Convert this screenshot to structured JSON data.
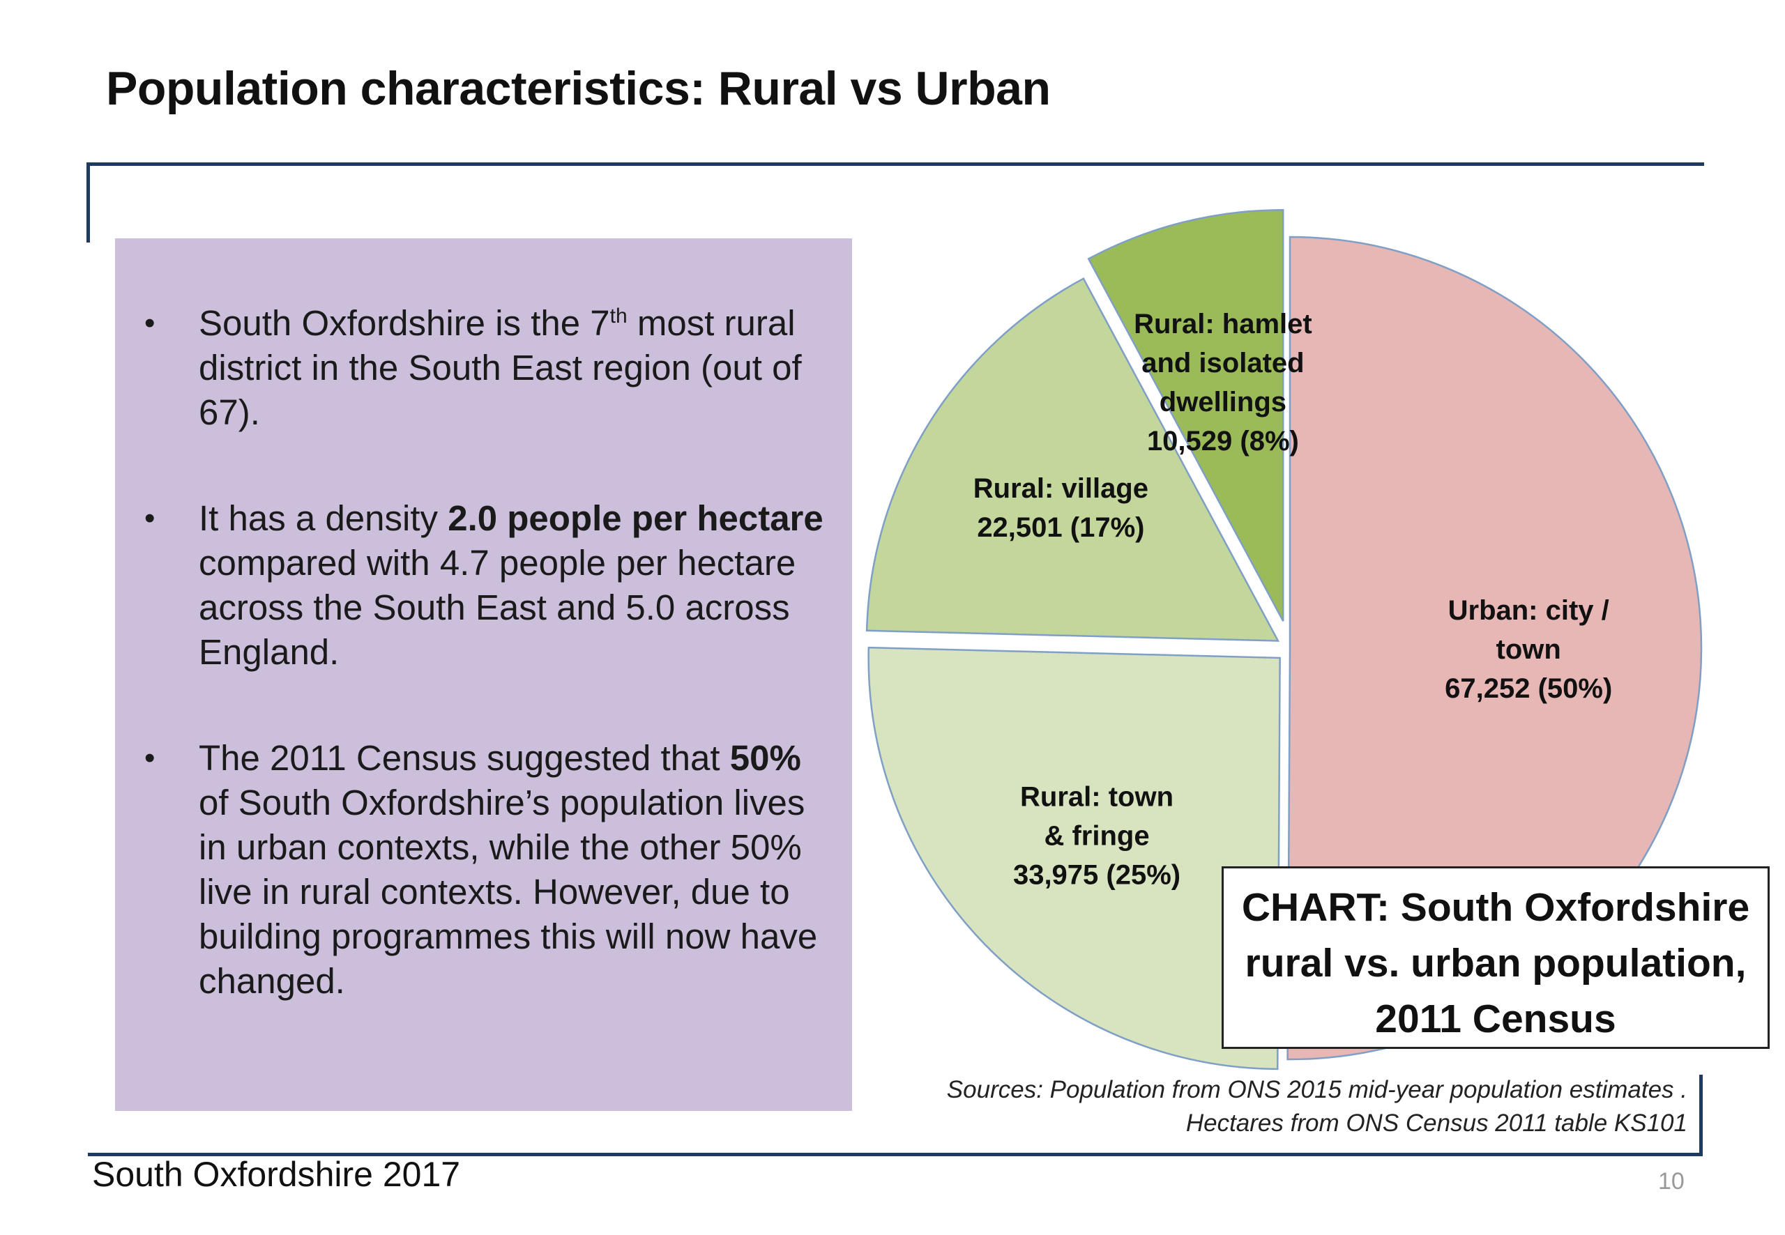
{
  "slide": {
    "title": "Population characteristics: Rural vs Urban",
    "footer": "South Oxfordshire  2017",
    "page_number": "10"
  },
  "bullets": [
    {
      "parts": [
        {
          "t": "South Oxfordshire is the 7"
        },
        {
          "t": "th",
          "sup": true
        },
        {
          "t": " most rural district in the South East region (out of 67)."
        }
      ]
    },
    {
      "parts": [
        {
          "t": "It has a density "
        },
        {
          "t": "2.0 people per hectare",
          "b": true
        },
        {
          "t": " compared with 4.7 people per hectare across the South East and 5.0 across England."
        }
      ]
    },
    {
      "parts": [
        {
          "t": "The 2011 Census suggested that "
        },
        {
          "t": "50%",
          "b": true
        },
        {
          "t": " of South Oxfordshire’s population lives in urban contexts, while the other 50% live in rural contexts. However, due to building programmes this will now have changed."
        }
      ]
    }
  ],
  "chart_title_lines": [
    "CHART: South Oxfordshire",
    "rural vs. urban population,",
    "2011 Census"
  ],
  "sources_lines": [
    "Sources: Population from ONS 2015 mid-year population estimates .",
    "Hectares from ONS Census 2011 table KS101"
  ],
  "chart_data": {
    "type": "pie",
    "title": "CHART: South Oxfordshire rural vs. urban population, 2011 Census",
    "exploded": true,
    "slices": [
      {
        "name": "Urban: city / town",
        "label_lines": [
          "Urban: city /",
          "town",
          "67,252 (50%)"
        ],
        "value": 67252,
        "percent": 50,
        "color": "#e6b7b5"
      },
      {
        "name": "Rural: town & fringe",
        "label_lines": [
          "Rural: town",
          "& fringe",
          "33,975 (25%)"
        ],
        "value": 33975,
        "percent": 25,
        "color": "#d8e4bf"
      },
      {
        "name": "Rural: village",
        "label_lines": [
          "Rural: village",
          "22,501 (17%)"
        ],
        "value": 22501,
        "percent": 17,
        "color": "#c3d69b"
      },
      {
        "name": "Rural: hamlet and isolated dwellings",
        "label_lines": [
          "Rural: hamlet",
          "and isolated",
          "dwellings",
          "10,529 (8%)"
        ],
        "value": 10529,
        "percent": 8,
        "color": "#9bbb59"
      }
    ]
  }
}
